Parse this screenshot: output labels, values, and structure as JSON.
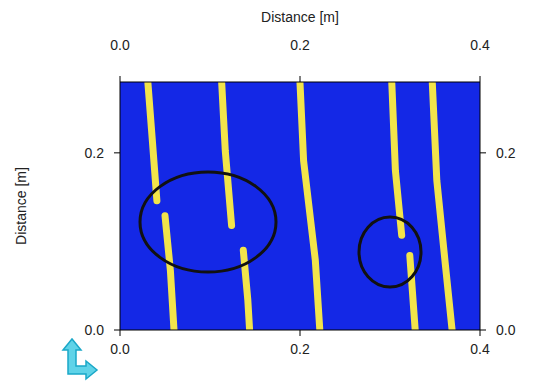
{
  "chart_data": {
    "type": "line",
    "x_label": "Distance [m]",
    "y_label": "Distance [m]",
    "xlim": [
      0,
      0.4
    ],
    "ylim": [
      0,
      0.28
    ],
    "xticks": [
      {
        "value": 0,
        "label": "0.0"
      },
      0.2,
      0.4
    ],
    "yticks": [
      {
        "value": 0,
        "label": "0.0"
      },
      0.2
    ],
    "series": [
      {
        "color": "#f2e44a",
        "x": [
          0.031,
          0.036,
          0.041,
          0.045,
          0.05,
          0.056,
          0.06
        ],
        "values": [
          0.279,
          0.213,
          0.146,
          null,
          0.129,
          0.067,
          0.0
        ]
      },
      {
        "color": "#f2e44a",
        "x": [
          0.113,
          0.117,
          0.124,
          0.13,
          0.137,
          0.142,
          0.144
        ],
        "values": [
          0.279,
          0.202,
          0.118,
          null,
          0.09,
          0.034,
          0.0
        ]
      },
      {
        "color": "#f2e44a",
        "x": [
          0.2,
          0.204,
          0.217,
          0.222
        ],
        "values": [
          0.279,
          0.191,
          0.079,
          0.0
        ]
      },
      {
        "color": "#f2e44a",
        "x": [
          0.302,
          0.306,
          0.313,
          0.318,
          0.322,
          0.328
        ],
        "values": [
          0.279,
          0.18,
          0.107,
          null,
          0.084,
          0.0
        ]
      },
      {
        "color": "#f2e44a",
        "x": [
          0.347,
          0.352,
          0.361,
          0.369
        ],
        "values": [
          0.279,
          0.169,
          0.079,
          0.0
        ]
      }
    ]
  }
}
